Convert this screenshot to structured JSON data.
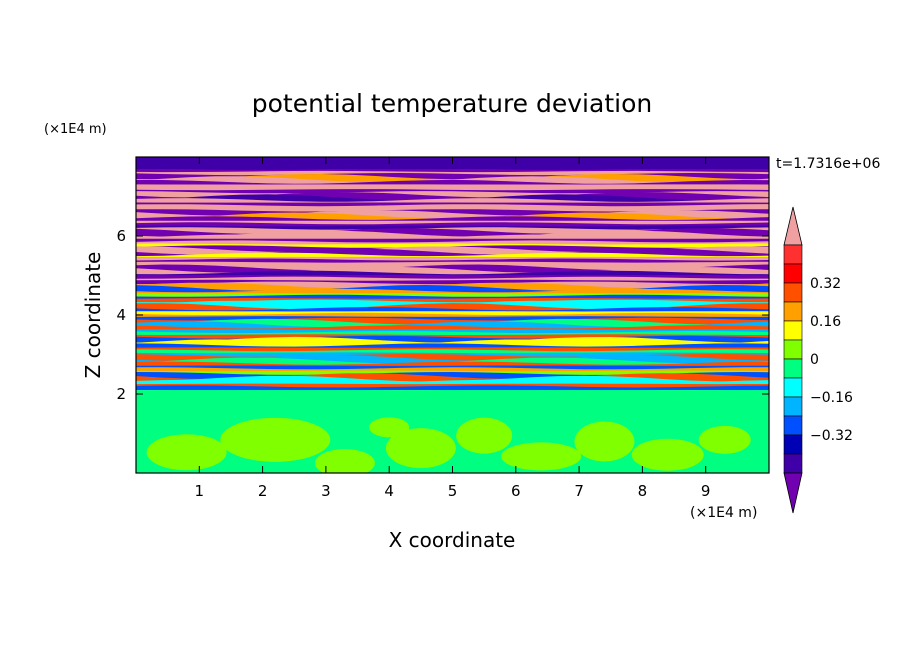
{
  "chart_data": {
    "type": "heatmap",
    "title": "potential temperature deviation",
    "xlabel": "X coordinate",
    "ylabel": "Z coordinate",
    "x_unit": "(×1E4 m)",
    "y_unit": "(×1E4 m)",
    "time_label": "t=1.7316e+06",
    "xlim": [
      0,
      10
    ],
    "ylim": [
      0,
      8
    ],
    "x_ticks": [
      "1",
      "2",
      "3",
      "4",
      "5",
      "6",
      "7",
      "8",
      "9"
    ],
    "x_tick_values": [
      1,
      2,
      3,
      4,
      5,
      6,
      7,
      8,
      9
    ],
    "y_ticks": [
      "2",
      "4",
      "6"
    ],
    "y_tick_values": [
      2,
      4,
      6
    ],
    "colorbar": {
      "levels": [
        -0.48,
        -0.4,
        -0.32,
        -0.24,
        -0.16,
        -0.08,
        0,
        0.08,
        0.16,
        0.24,
        0.32,
        0.4,
        0.48
      ],
      "colors": [
        "#7000b0",
        "#4000a8",
        "#0000b4",
        "#0050ff",
        "#00b4ff",
        "#00ffff",
        "#00ff80",
        "#80ff00",
        "#ffff00",
        "#ffa000",
        "#ff5000",
        "#ff0000",
        "#ff3030",
        "#f0a0a0"
      ],
      "tick_labels": [
        "0.32",
        "0.16",
        "0",
        "−0.16",
        "−0.32"
      ],
      "tick_values": [
        0.32,
        0.16,
        0,
        -0.16,
        -0.32
      ]
    },
    "regions": {
      "lower_layer_top_z": 2.1,
      "lower_layer_colors": [
        "#00ff80",
        "#80ff00"
      ]
    }
  }
}
